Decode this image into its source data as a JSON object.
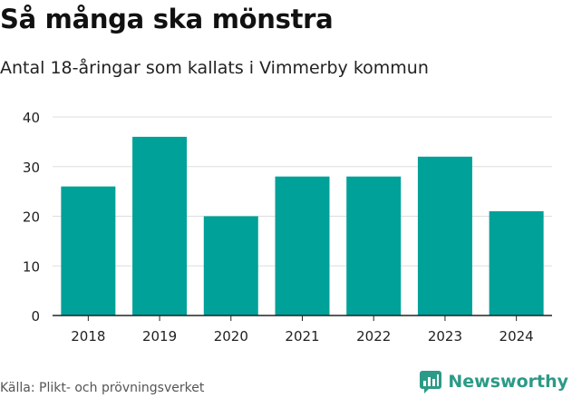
{
  "header": {
    "title": "Så många ska mönstra",
    "subtitle": "Antal 18-åringar som kallats i Vimmerby kommun"
  },
  "footer": {
    "source": "Källa: Plikt- och prövningsverket",
    "brand": "Newsworthy"
  },
  "colors": {
    "bar": "#00a198",
    "grid": "#dddddd",
    "axis": "#222222",
    "brand": "#2b9a86"
  },
  "chart_data": {
    "type": "bar",
    "title": "Så många ska mönstra",
    "subtitle": "Antal 18-åringar som kallats i Vimmerby kommun",
    "categories": [
      "2018",
      "2019",
      "2020",
      "2021",
      "2022",
      "2023",
      "2024"
    ],
    "values": [
      26,
      36,
      20,
      28,
      28,
      32,
      21
    ],
    "xlabel": "",
    "ylabel": "",
    "ylim": [
      0,
      40
    ],
    "yticks": [
      0,
      10,
      20,
      30,
      40
    ],
    "grid": true,
    "legend": "none"
  }
}
